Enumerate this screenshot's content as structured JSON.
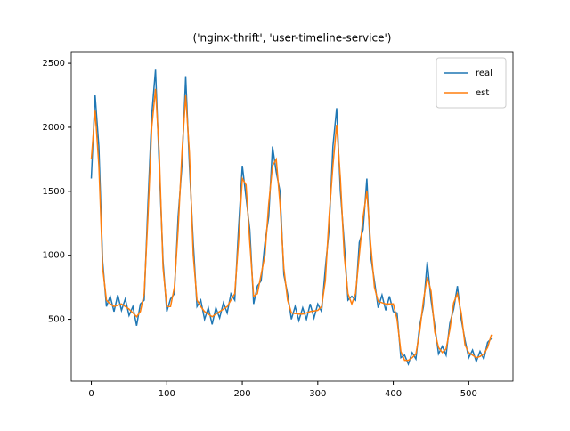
{
  "chart_data": {
    "type": "line",
    "title": "('nginx-thrift', 'user-timeline-service')",
    "x": [
      0,
      5,
      10,
      15,
      20,
      25,
      30,
      35,
      40,
      45,
      50,
      55,
      60,
      65,
      70,
      75,
      80,
      85,
      90,
      95,
      100,
      105,
      110,
      115,
      120,
      125,
      130,
      135,
      140,
      145,
      150,
      155,
      160,
      165,
      170,
      175,
      180,
      185,
      190,
      195,
      200,
      205,
      210,
      215,
      220,
      225,
      230,
      235,
      240,
      245,
      250,
      255,
      260,
      265,
      270,
      275,
      280,
      285,
      290,
      295,
      300,
      305,
      310,
      315,
      320,
      325,
      330,
      335,
      340,
      345,
      350,
      355,
      360,
      365,
      370,
      375,
      380,
      385,
      390,
      395,
      400,
      405,
      410,
      415,
      420,
      425,
      430,
      435,
      440,
      445,
      450,
      455,
      460,
      465,
      470,
      475,
      480,
      485,
      490,
      495,
      500,
      505,
      510,
      515,
      520,
      525,
      530
    ],
    "series": [
      {
        "name": "real",
        "color": "#1f77b4",
        "values": [
          1600,
          2250,
          1850,
          950,
          600,
          680,
          560,
          690,
          570,
          660,
          530,
          600,
          450,
          620,
          650,
          1400,
          2100,
          2450,
          1700,
          950,
          560,
          660,
          700,
          1300,
          1700,
          2400,
          1700,
          1100,
          600,
          650,
          500,
          590,
          460,
          590,
          510,
          630,
          550,
          700,
          650,
          1200,
          1700,
          1450,
          1200,
          620,
          760,
          800,
          1100,
          1300,
          1850,
          1650,
          1500,
          850,
          700,
          500,
          600,
          490,
          590,
          500,
          620,
          510,
          620,
          560,
          900,
          1200,
          1850,
          2150,
          1500,
          1100,
          650,
          680,
          650,
          1100,
          1200,
          1600,
          1000,
          800,
          590,
          690,
          570,
          680,
          560,
          550,
          200,
          220,
          150,
          240,
          190,
          450,
          600,
          950,
          650,
          450,
          230,
          290,
          220,
          470,
          580,
          760,
          500,
          340,
          200,
          260,
          170,
          250,
          190,
          320,
          350
        ]
      },
      {
        "name": "est",
        "color": "#ff7f0e",
        "values": [
          1750,
          2130,
          1700,
          900,
          650,
          620,
          600,
          610,
          620,
          600,
          580,
          550,
          520,
          560,
          700,
          1300,
          2000,
          2300,
          1800,
          900,
          600,
          600,
          750,
          1200,
          1800,
          2250,
          1800,
          1000,
          650,
          600,
          560,
          540,
          520,
          540,
          560,
          580,
          600,
          650,
          700,
          1100,
          1600,
          1550,
          1100,
          680,
          700,
          850,
          1000,
          1400,
          1700,
          1750,
          1400,
          900,
          650,
          550,
          545,
          540,
          540,
          550,
          560,
          565,
          570,
          600,
          800,
          1300,
          1700,
          2020,
          1600,
          1000,
          700,
          620,
          700,
          1000,
          1300,
          1500,
          1100,
          750,
          640,
          630,
          620,
          620,
          620,
          500,
          250,
          180,
          180,
          200,
          230,
          400,
          650,
          830,
          720,
          400,
          280,
          240,
          270,
          420,
          630,
          700,
          550,
          300,
          240,
          220,
          200,
          210,
          230,
          280,
          380
        ]
      }
    ],
    "xlim": [
      -26.6,
      558.6
    ],
    "ylim": [
      17,
      2591
    ],
    "xticks": [
      0,
      100,
      200,
      300,
      400,
      500
    ],
    "yticks": [
      500,
      1000,
      1500,
      2000,
      2500
    ],
    "legend": "upper right"
  }
}
